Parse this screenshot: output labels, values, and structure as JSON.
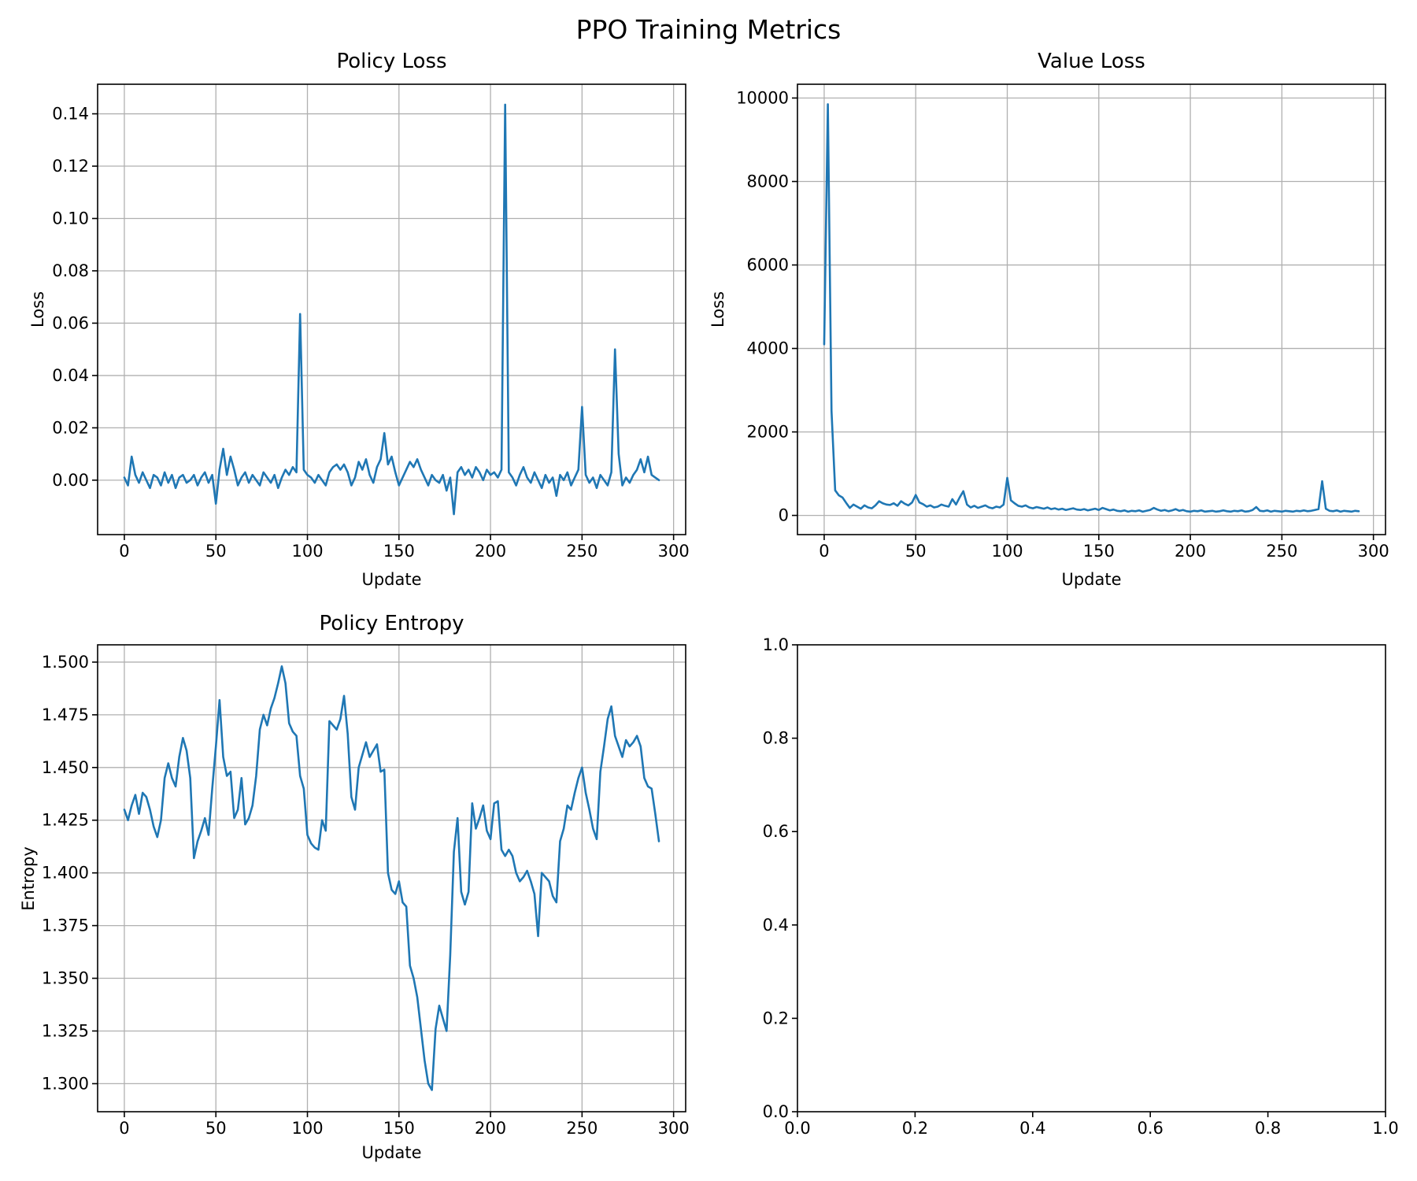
{
  "figure": {
    "suptitle": "PPO Training Metrics",
    "background_color": "#ffffff",
    "line_color": "#1f77b4",
    "grid_color": "#b0b0b0",
    "axis_color": "#000000"
  },
  "chart_data": [
    {
      "id": "policy_loss",
      "type": "line",
      "title": "Policy Loss",
      "xlabel": "Update",
      "ylabel": "Loss",
      "grid": true,
      "legend": "none",
      "xlim": [
        -14.6,
        306.6
      ],
      "ylim": [
        -0.0208,
        0.1513
      ],
      "xticks": [
        0,
        50,
        100,
        150,
        200,
        250,
        300
      ],
      "xtick_labels": [
        "0",
        "50",
        "100",
        "150",
        "200",
        "250",
        "300"
      ],
      "yticks": [
        0.0,
        0.02,
        0.04,
        0.06,
        0.08,
        0.1,
        0.12,
        0.14
      ],
      "ytick_labels": [
        "0.00",
        "0.02",
        "0.04",
        "0.06",
        "0.08",
        "0.10",
        "0.12",
        "0.14"
      ],
      "x": [
        0,
        2,
        4,
        6,
        8,
        10,
        12,
        14,
        16,
        18,
        20,
        22,
        24,
        26,
        28,
        30,
        32,
        34,
        36,
        38,
        40,
        42,
        44,
        46,
        48,
        50,
        52,
        54,
        56,
        58,
        60,
        62,
        64,
        66,
        68,
        70,
        72,
        74,
        76,
        78,
        80,
        82,
        84,
        86,
        88,
        90,
        92,
        94,
        96,
        98,
        100,
        102,
        104,
        106,
        108,
        110,
        112,
        114,
        116,
        118,
        120,
        122,
        124,
        126,
        128,
        130,
        132,
        134,
        136,
        138,
        140,
        142,
        144,
        146,
        148,
        150,
        152,
        154,
        156,
        158,
        160,
        162,
        164,
        166,
        168,
        170,
        172,
        174,
        176,
        178,
        180,
        182,
        184,
        186,
        188,
        190,
        192,
        194,
        196,
        198,
        200,
        202,
        204,
        206,
        208,
        210,
        212,
        214,
        216,
        218,
        220,
        222,
        224,
        226,
        228,
        230,
        232,
        234,
        236,
        238,
        240,
        242,
        244,
        246,
        248,
        250,
        252,
        254,
        256,
        258,
        260,
        262,
        264,
        266,
        268,
        270,
        272,
        274,
        276,
        278,
        280,
        282,
        284,
        286,
        288,
        290,
        292
      ],
      "y": [
        0.001,
        -0.002,
        0.009,
        0.002,
        -0.001,
        0.003,
        0.0,
        -0.003,
        0.002,
        0.001,
        -0.002,
        0.003,
        -0.001,
        0.002,
        -0.003,
        0.001,
        0.002,
        -0.001,
        0.0,
        0.002,
        -0.002,
        0.001,
        0.003,
        -0.001,
        0.002,
        -0.009,
        0.004,
        0.012,
        0.002,
        0.009,
        0.004,
        -0.002,
        0.001,
        0.003,
        -0.001,
        0.002,
        0.0,
        -0.002,
        0.003,
        0.001,
        -0.001,
        0.002,
        -0.003,
        0.001,
        0.004,
        0.002,
        0.005,
        0.003,
        0.0635,
        0.004,
        0.002,
        0.001,
        -0.001,
        0.002,
        0.0,
        -0.002,
        0.003,
        0.005,
        0.006,
        0.004,
        0.006,
        0.003,
        -0.002,
        0.001,
        0.007,
        0.004,
        0.008,
        0.002,
        -0.001,
        0.005,
        0.008,
        0.018,
        0.006,
        0.009,
        0.003,
        -0.002,
        0.001,
        0.004,
        0.007,
        0.005,
        0.008,
        0.004,
        0.001,
        -0.002,
        0.002,
        0.0,
        -0.001,
        0.002,
        -0.004,
        0.001,
        -0.013,
        0.003,
        0.005,
        0.002,
        0.004,
        0.001,
        0.005,
        0.003,
        0.0,
        0.004,
        0.002,
        0.003,
        0.001,
        0.004,
        0.1435,
        0.003,
        0.001,
        -0.002,
        0.002,
        0.005,
        0.001,
        -0.001,
        0.003,
        0.0,
        -0.003,
        0.002,
        -0.001,
        0.001,
        -0.006,
        0.002,
        0.0,
        0.003,
        -0.002,
        0.001,
        0.004,
        0.028,
        0.002,
        -0.001,
        0.001,
        -0.003,
        0.002,
        0.0,
        -0.002,
        0.003,
        0.05,
        0.01,
        -0.002,
        0.001,
        -0.001,
        0.002,
        0.004,
        0.008,
        0.003,
        0.009,
        0.002,
        0.001,
        0.0
      ]
    },
    {
      "id": "value_loss",
      "type": "line",
      "title": "Value Loss",
      "xlabel": "Update",
      "ylabel": "Loss",
      "grid": true,
      "legend": "none",
      "xlim": [
        -14.6,
        306.6
      ],
      "ylim": [
        -460,
        10330
      ],
      "xticks": [
        0,
        50,
        100,
        150,
        200,
        250,
        300
      ],
      "xtick_labels": [
        "0",
        "50",
        "100",
        "150",
        "200",
        "250",
        "300"
      ],
      "yticks": [
        0,
        2000,
        4000,
        6000,
        8000,
        10000
      ],
      "ytick_labels": [
        "0",
        "2000",
        "4000",
        "6000",
        "8000",
        "10000"
      ],
      "x": [
        0,
        2,
        4,
        6,
        8,
        10,
        12,
        14,
        16,
        18,
        20,
        22,
        24,
        26,
        28,
        30,
        32,
        34,
        36,
        38,
        40,
        42,
        44,
        46,
        48,
        50,
        52,
        54,
        56,
        58,
        60,
        62,
        64,
        66,
        68,
        70,
        72,
        74,
        76,
        78,
        80,
        82,
        84,
        86,
        88,
        90,
        92,
        94,
        96,
        98,
        100,
        102,
        104,
        106,
        108,
        110,
        112,
        114,
        116,
        118,
        120,
        122,
        124,
        126,
        128,
        130,
        132,
        134,
        136,
        138,
        140,
        142,
        144,
        146,
        148,
        150,
        152,
        154,
        156,
        158,
        160,
        162,
        164,
        166,
        168,
        170,
        172,
        174,
        176,
        178,
        180,
        182,
        184,
        186,
        188,
        190,
        192,
        194,
        196,
        198,
        200,
        202,
        204,
        206,
        208,
        210,
        212,
        214,
        216,
        218,
        220,
        222,
        224,
        226,
        228,
        230,
        232,
        234,
        236,
        238,
        240,
        242,
        244,
        246,
        248,
        250,
        252,
        254,
        256,
        258,
        260,
        262,
        264,
        266,
        268,
        270,
        272,
        274,
        276,
        278,
        280,
        282,
        284,
        286,
        288,
        290,
        292
      ],
      "y": [
        4100,
        9850,
        2500,
        600,
        480,
        430,
        300,
        180,
        260,
        210,
        160,
        240,
        190,
        170,
        240,
        340,
        290,
        260,
        250,
        290,
        230,
        340,
        280,
        240,
        310,
        490,
        310,
        270,
        210,
        240,
        190,
        210,
        260,
        230,
        210,
        390,
        260,
        430,
        580,
        260,
        190,
        230,
        180,
        210,
        240,
        190,
        170,
        210,
        190,
        260,
        900,
        360,
        290,
        230,
        210,
        240,
        190,
        170,
        200,
        180,
        160,
        190,
        150,
        170,
        140,
        160,
        130,
        150,
        170,
        140,
        130,
        150,
        120,
        140,
        160,
        130,
        180,
        150,
        120,
        140,
        110,
        100,
        120,
        90,
        110,
        100,
        120,
        90,
        110,
        130,
        180,
        140,
        110,
        130,
        100,
        120,
        150,
        110,
        130,
        100,
        90,
        110,
        100,
        120,
        90,
        100,
        110,
        90,
        100,
        120,
        100,
        90,
        110,
        100,
        120,
        90,
        100,
        130,
        200,
        110,
        100,
        120,
        90,
        110,
        100,
        90,
        110,
        100,
        90,
        110,
        100,
        120,
        100,
        110,
        130,
        150,
        820,
        160,
        110,
        100,
        120,
        90,
        110,
        100,
        90,
        110,
        100
      ]
    },
    {
      "id": "policy_entropy",
      "type": "line",
      "title": "Policy Entropy",
      "xlabel": "Update",
      "ylabel": "Entropy",
      "grid": true,
      "legend": "none",
      "xlim": [
        -14.6,
        306.6
      ],
      "ylim": [
        1.2867,
        1.5082
      ],
      "xticks": [
        0,
        50,
        100,
        150,
        200,
        250,
        300
      ],
      "xtick_labels": [
        "0",
        "50",
        "100",
        "150",
        "200",
        "250",
        "300"
      ],
      "yticks": [
        1.3,
        1.325,
        1.35,
        1.375,
        1.4,
        1.425,
        1.45,
        1.475,
        1.5
      ],
      "ytick_labels": [
        "1.300",
        "1.325",
        "1.350",
        "1.375",
        "1.400",
        "1.425",
        "1.450",
        "1.475",
        "1.500"
      ],
      "x": [
        0,
        2,
        4,
        6,
        8,
        10,
        12,
        14,
        16,
        18,
        20,
        22,
        24,
        26,
        28,
        30,
        32,
        34,
        36,
        38,
        40,
        42,
        44,
        46,
        48,
        50,
        52,
        54,
        56,
        58,
        60,
        62,
        64,
        66,
        68,
        70,
        72,
        74,
        76,
        78,
        80,
        82,
        84,
        86,
        88,
        90,
        92,
        94,
        96,
        98,
        100,
        102,
        104,
        106,
        108,
        110,
        112,
        114,
        116,
        118,
        120,
        122,
        124,
        126,
        128,
        130,
        132,
        134,
        136,
        138,
        140,
        142,
        144,
        146,
        148,
        150,
        152,
        154,
        156,
        158,
        160,
        162,
        164,
        166,
        168,
        170,
        172,
        174,
        176,
        178,
        180,
        182,
        184,
        186,
        188,
        190,
        192,
        194,
        196,
        198,
        200,
        202,
        204,
        206,
        208,
        210,
        212,
        214,
        216,
        218,
        220,
        222,
        224,
        226,
        228,
        230,
        232,
        234,
        236,
        238,
        240,
        242,
        244,
        246,
        248,
        250,
        252,
        254,
        256,
        258,
        260,
        262,
        264,
        266,
        268,
        270,
        272,
        274,
        276,
        278,
        280,
        282,
        284,
        286,
        288,
        290,
        292
      ],
      "y": [
        1.43,
        1.425,
        1.432,
        1.437,
        1.428,
        1.438,
        1.436,
        1.43,
        1.422,
        1.417,
        1.425,
        1.445,
        1.452,
        1.445,
        1.441,
        1.455,
        1.464,
        1.458,
        1.445,
        1.407,
        1.415,
        1.42,
        1.426,
        1.418,
        1.44,
        1.46,
        1.482,
        1.455,
        1.446,
        1.448,
        1.426,
        1.43,
        1.445,
        1.423,
        1.426,
        1.432,
        1.446,
        1.468,
        1.475,
        1.47,
        1.478,
        1.483,
        1.49,
        1.498,
        1.49,
        1.471,
        1.467,
        1.465,
        1.446,
        1.44,
        1.418,
        1.414,
        1.412,
        1.411,
        1.425,
        1.42,
        1.472,
        1.47,
        1.468,
        1.473,
        1.484,
        1.466,
        1.436,
        1.43,
        1.45,
        1.456,
        1.462,
        1.455,
        1.458,
        1.461,
        1.448,
        1.449,
        1.4,
        1.392,
        1.39,
        1.396,
        1.386,
        1.384,
        1.356,
        1.35,
        1.341,
        1.326,
        1.311,
        1.3,
        1.297,
        1.326,
        1.337,
        1.331,
        1.325,
        1.361,
        1.41,
        1.426,
        1.391,
        1.385,
        1.391,
        1.433,
        1.421,
        1.426,
        1.432,
        1.42,
        1.416,
        1.433,
        1.434,
        1.411,
        1.408,
        1.411,
        1.408,
        1.4,
        1.396,
        1.398,
        1.401,
        1.396,
        1.39,
        1.37,
        1.4,
        1.398,
        1.396,
        1.389,
        1.386,
        1.415,
        1.421,
        1.432,
        1.43,
        1.438,
        1.445,
        1.45,
        1.438,
        1.43,
        1.421,
        1.416,
        1.448,
        1.46,
        1.473,
        1.479,
        1.465,
        1.46,
        1.455,
        1.463,
        1.46,
        1.462,
        1.465,
        1.46,
        1.445,
        1.441,
        1.44,
        1.428,
        1.415
      ]
    },
    {
      "id": "empty_panel",
      "type": "line",
      "title": "",
      "xlabel": "",
      "ylabel": "",
      "grid": false,
      "legend": "none",
      "xlim": [
        0,
        1
      ],
      "ylim": [
        0,
        1
      ],
      "xticks": [
        0,
        0.2,
        0.4,
        0.6,
        0.8,
        1.0
      ],
      "xtick_labels": [
        "0.0",
        "0.2",
        "0.4",
        "0.6",
        "0.8",
        "1.0"
      ],
      "yticks": [
        0,
        0.2,
        0.4,
        0.6,
        0.8,
        1.0
      ],
      "ytick_labels": [
        "0.0",
        "0.2",
        "0.4",
        "0.6",
        "0.8",
        "1.0"
      ],
      "x": [],
      "y": []
    }
  ]
}
